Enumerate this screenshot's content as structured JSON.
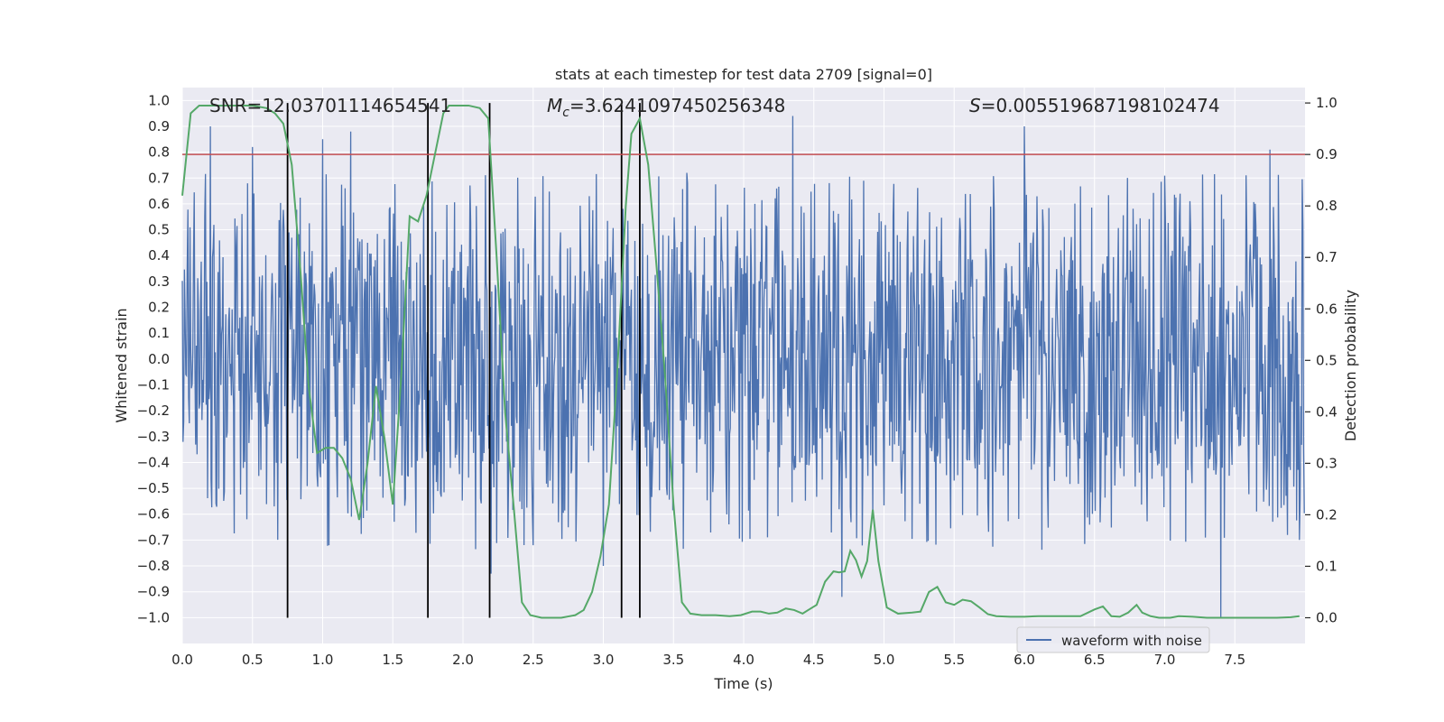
{
  "chart_data": {
    "type": "line",
    "title": "stats at each timestep for test data 2709 [signal=0]",
    "xlabel": "Time (s)",
    "ylabel_left": "Whitened strain",
    "ylabel_right": "Detection probability",
    "xlim": [
      0.0,
      8.0
    ],
    "ylim_left": [
      -1.1,
      1.05
    ],
    "ylim_right": [
      -0.05,
      1.03
    ],
    "x_ticks": [
      "0.0",
      "0.5",
      "1.0",
      "1.5",
      "2.0",
      "2.5",
      "3.0",
      "3.5",
      "4.0",
      "4.5",
      "5.0",
      "5.5",
      "6.0",
      "6.5",
      "7.0",
      "7.5"
    ],
    "y_ticks_left": [
      "1.0",
      "0.9",
      "0.8",
      "0.7",
      "0.6",
      "0.5",
      "0.4",
      "0.3",
      "0.2",
      "0.1",
      "0.0",
      "-0.1",
      "-0.2",
      "-0.3",
      "-0.4",
      "-0.5",
      "-0.6",
      "-0.7",
      "-0.8",
      "-0.9",
      "-1.0"
    ],
    "y_ticks_right": [
      "1.0",
      "0.9",
      "0.8",
      "0.7",
      "0.6",
      "0.5",
      "0.4",
      "0.3",
      "0.2",
      "0.1",
      "0.0"
    ],
    "annotations": {
      "snr": "SNR=12.03701114654541",
      "mc_symbol": "M",
      "mc_sub": "c",
      "mc_value": "=3.6241097450256348",
      "s_symbol": "S",
      "s_value": "=0.005519687198102474"
    },
    "legend": {
      "label": "waveform with noise",
      "placement": "lower-center-right"
    },
    "threshold_right": 0.9,
    "vertical_lines_time": [
      0.75,
      1.75,
      2.19,
      3.13,
      3.26
    ],
    "waveform": {
      "name": "waveform with noise",
      "samples": 1600,
      "band_lo": -0.42,
      "band_hi": 0.36,
      "noted_peaks_time": [
        0.2,
        0.5,
        1.0,
        1.2,
        2.2,
        2.5,
        3.0,
        4.35,
        4.7,
        6.0,
        7.4,
        7.75
      ],
      "noted_peaks_value": [
        0.9,
        0.82,
        0.85,
        0.88,
        -0.83,
        -0.72,
        -0.8,
        0.94,
        -0.92,
        0.9,
        -1.0,
        0.81
      ]
    },
    "series_detection": {
      "name": "detection probability",
      "x": [
        0.0,
        0.06,
        0.12,
        0.2,
        0.3,
        0.4,
        0.5,
        0.6,
        0.66,
        0.72,
        0.78,
        0.84,
        0.9,
        0.96,
        1.02,
        1.08,
        1.14,
        1.2,
        1.26,
        1.32,
        1.38,
        1.44,
        1.5,
        1.56,
        1.62,
        1.68,
        1.74,
        1.8,
        1.86,
        1.9,
        1.96,
        2.04,
        2.12,
        2.18,
        2.24,
        2.3,
        2.36,
        2.42,
        2.48,
        2.56,
        2.7,
        2.8,
        2.86,
        2.92,
        2.98,
        3.04,
        3.1,
        3.16,
        3.2,
        3.26,
        3.32,
        3.38,
        3.44,
        3.5,
        3.56,
        3.62,
        3.7,
        3.8,
        3.9,
        3.98,
        4.06,
        4.12,
        4.18,
        4.24,
        4.3,
        4.36,
        4.42,
        4.46,
        4.52,
        4.58,
        4.64,
        4.68,
        4.72,
        4.76,
        4.8,
        4.84,
        4.88,
        4.92,
        4.96,
        5.02,
        5.1,
        5.2,
        5.26,
        5.32,
        5.38,
        5.44,
        5.5,
        5.56,
        5.62,
        5.68,
        5.74,
        5.8,
        5.9,
        6.0,
        6.1,
        6.2,
        6.3,
        6.4,
        6.5,
        6.56,
        6.62,
        6.68,
        6.74,
        6.8,
        6.84,
        6.9,
        6.96,
        7.04,
        7.1,
        7.2,
        7.3,
        7.4,
        7.5,
        7.6,
        7.7,
        7.8,
        7.9,
        7.96
      ],
      "y": [
        0.82,
        0.98,
        0.995,
        0.995,
        0.995,
        0.995,
        0.995,
        0.99,
        0.98,
        0.96,
        0.88,
        0.68,
        0.45,
        0.32,
        0.33,
        0.33,
        0.31,
        0.27,
        0.19,
        0.3,
        0.45,
        0.35,
        0.22,
        0.47,
        0.78,
        0.77,
        0.82,
        0.9,
        0.98,
        0.995,
        0.995,
        0.995,
        0.99,
        0.97,
        0.7,
        0.4,
        0.22,
        0.03,
        0.005,
        0.0,
        0.0,
        0.005,
        0.015,
        0.05,
        0.12,
        0.22,
        0.48,
        0.8,
        0.94,
        0.97,
        0.88,
        0.68,
        0.47,
        0.22,
        0.03,
        0.008,
        0.005,
        0.005,
        0.003,
        0.005,
        0.012,
        0.012,
        0.008,
        0.01,
        0.018,
        0.015,
        0.008,
        0.015,
        0.025,
        0.07,
        0.09,
        0.088,
        0.09,
        0.13,
        0.112,
        0.08,
        0.11,
        0.21,
        0.11,
        0.02,
        0.008,
        0.01,
        0.012,
        0.05,
        0.06,
        0.03,
        0.025,
        0.035,
        0.032,
        0.02,
        0.007,
        0.003,
        0.002,
        0.002,
        0.003,
        0.003,
        0.003,
        0.003,
        0.016,
        0.022,
        0.003,
        0.002,
        0.01,
        0.025,
        0.01,
        0.003,
        0.0,
        0.0,
        0.003,
        0.002,
        0.0,
        0.0,
        0.0,
        0.0,
        0.0,
        0.0,
        0.001,
        0.003
      ]
    },
    "colors": {
      "figure_bg": "#ffffff",
      "plot_bg": "#eaeaf2",
      "grid": "#ffffff",
      "waveform": "#4c72b0",
      "detection": "#55a868",
      "threshold": "#c44e52",
      "vlines": "#000000",
      "text": "#262626"
    }
  }
}
